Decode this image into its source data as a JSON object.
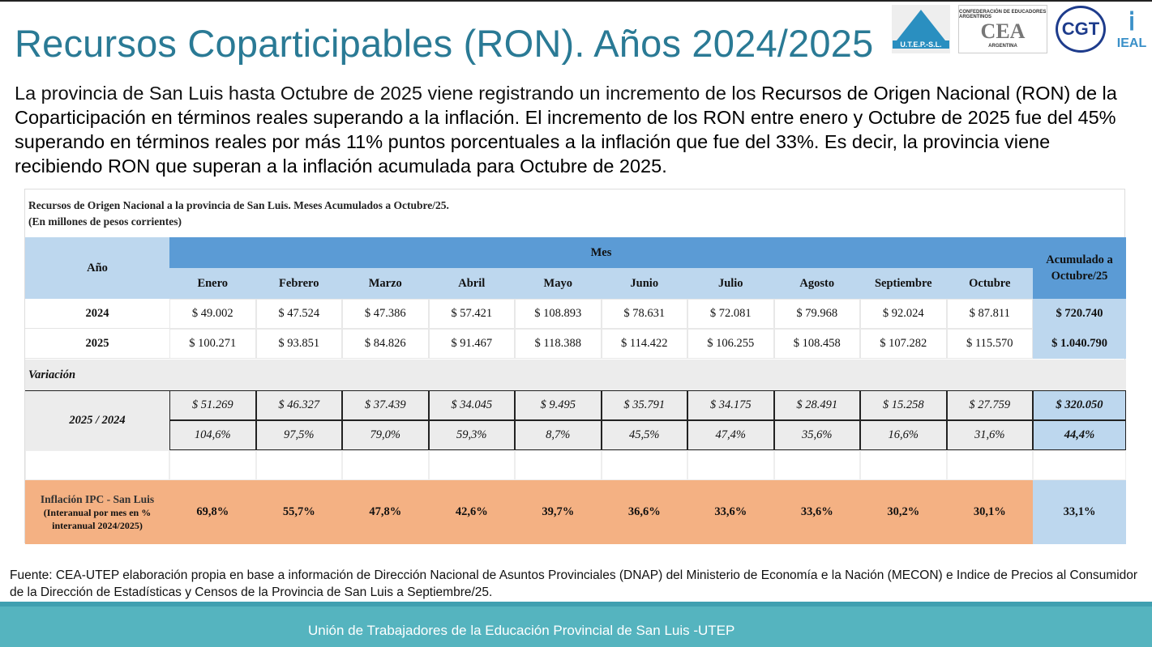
{
  "title": "Recursos Coparticipables (RON). Años 2024/2025",
  "logos": {
    "utep": "U.T.E.P.-S.L.",
    "cea": "CEA",
    "cea_top": "CONFEDERACIÓN DE EDUCADORES ARGENTINOS",
    "cea_bottom": "ARGENTINA",
    "cgt": "CGT",
    "ieal": "IEAL"
  },
  "intro": {
    "p1": "La provincia de San Luis hasta Octubre de 2025 viene registrando un incremento de los ",
    "p2": "Recursos de Origen Nacional (RON) de la Coparticipación en términos reales superando a la inflación. El incremento de los RON entre enero y Octubre de 2025 fue del 45% superando en términos reales por más 11% puntos porcentuales a la inflación que fue del 33%. Es decir, la provincia viene recibiendo RON que superan a la inflación acumulada para Octubre de 2025."
  },
  "table": {
    "title": "Recursos de Origen Nacional a la provincia de San Luis. Meses Acumulados a Octubre/25.",
    "subtitle": "(En millones de pesos corrientes)",
    "year_header": "Año",
    "month_group": "Mes",
    "total_header": "Acumulado a Octubre/25",
    "months": [
      "Enero",
      "Febrero",
      "Marzo",
      "Abril",
      "Mayo",
      "Junio",
      "Julio",
      "Agosto",
      "Septiembre",
      "Octubre"
    ],
    "rows": [
      {
        "year": "2024",
        "values": [
          "$ 49.002",
          "$ 47.524",
          "$ 47.386",
          "$ 57.421",
          "$ 108.893",
          "$ 78.631",
          "$ 72.081",
          "$ 79.968",
          "$ 92.024",
          "$ 87.811"
        ],
        "total": "$ 720.740"
      },
      {
        "year": "2025",
        "values": [
          "$ 100.271",
          "$ 93.851",
          "$ 84.826",
          "$ 91.467",
          "$ 118.388",
          "$ 114.422",
          "$ 106.255",
          "$ 108.458",
          "$ 107.282",
          "$ 115.570"
        ],
        "total": "$ 1.040.790"
      }
    ],
    "variation_label": "Variación",
    "variation_period": "2025 / 2024",
    "variation_abs": {
      "values": [
        "$ 51.269",
        "$ 46.327",
        "$ 37.439",
        "$ 34.045",
        "$ 9.495",
        "$ 35.791",
        "$ 34.175",
        "$ 28.491",
        "$ 15.258",
        "$ 27.759"
      ],
      "total": "$ 320.050"
    },
    "variation_pct": {
      "values": [
        "104,6%",
        "97,5%",
        "79,0%",
        "59,3%",
        "8,7%",
        "45,5%",
        "47,4%",
        "35,6%",
        "16,6%",
        "31,6%"
      ],
      "total": "44,4%"
    },
    "inflation": {
      "label": "Inflación IPC - San Luis",
      "sublabel": "(Interanual por mes en % interanual 2024/2025)",
      "values": [
        "69,8%",
        "55,7%",
        "47,8%",
        "42,6%",
        "39,7%",
        "36,6%",
        "33,6%",
        "33,6%",
        "30,2%",
        "30,1%"
      ],
      "total": "33,1%"
    }
  },
  "source": "Fuente: CEA-UTEP elaboración propia en base a información de Dirección Nacional de Asuntos Provinciales (DNAP) del Ministerio de Economía e la Nación (MECON) e Indice de Precios al Consumidor de la Dirección de Estadísticas y Censos de la Provincia de San Luis a Septiembre/25.",
  "footer": "Unión de Trabajadores de la Educación Provincial de San Luis -UTEP",
  "colors": {
    "title": "#2a7a95",
    "header_dark": "#5b9bd5",
    "header_light": "#bdd7ee",
    "inflation": "#f4b183",
    "gray": "#ececec",
    "band": "#55b4bf"
  }
}
